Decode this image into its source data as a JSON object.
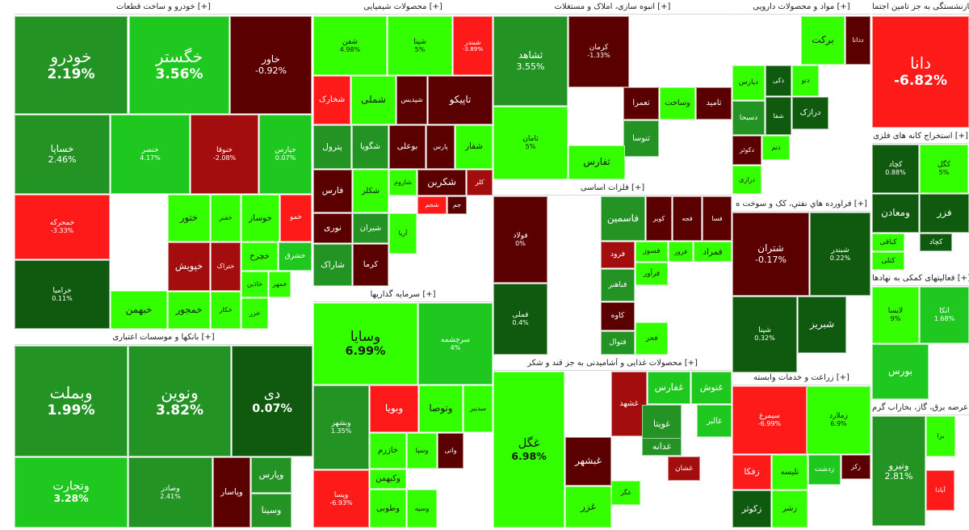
{
  "chart_data": {
    "type": "treemap",
    "colors": {
      "gain_strong": "#33ff00",
      "gain_mid": "#1fc81f",
      "gain_weak": "#239423",
      "neutral_dark": "#0f5a0f",
      "loss_dark": "#5a0000",
      "loss_mid": "#a30d0d",
      "loss_strong": "#ff1a1a",
      "text_light": "#ffffff",
      "text_dark": "#1a1a1a"
    },
    "sectors": [
      {
        "id": "auto",
        "title": "خودرو و ساخت قطعات [+]",
        "cells": [
          {
            "name": "خودرو",
            "pct": "2.19%",
            "c": "gain_weak",
            "big": true
          },
          {
            "name": "خگستر",
            "pct": "3.56%",
            "c": "gain_mid",
            "big": true
          },
          {
            "name": "خاور",
            "pct": "-0.92%",
            "c": "loss_dark"
          },
          {
            "name": "خساپا",
            "pct": "2.46%",
            "c": "gain_weak"
          },
          {
            "name": "خنصر",
            "pct": "4.17%",
            "c": "gain_mid",
            "small": true
          },
          {
            "name": "خنوقا",
            "pct": "-2.08%",
            "c": "loss_mid",
            "small": true
          },
          {
            "name": "خپارس",
            "pct": "0.07%",
            "c": "gain_mid",
            "small": true
          },
          {
            "name": "خمحرکه",
            "pct": "-3.33%",
            "c": "loss_strong",
            "small": true
          },
          {
            "name": "خرامیا",
            "pct": "0.11%",
            "c": "neutral_dark",
            "small": true
          },
          {
            "name": "ختور",
            "c": "gain_strong"
          },
          {
            "name": "خفنر",
            "c": "gain_strong"
          },
          {
            "name": "خوساز",
            "c": "gain_strong"
          },
          {
            "name": "خمو",
            "c": "loss_strong"
          },
          {
            "name": "خپویش",
            "c": "loss_mid"
          },
          {
            "name": "ختراک",
            "c": "loss_mid"
          },
          {
            "name": "خچرخ",
            "c": "gain_strong"
          },
          {
            "name": "خشرق",
            "c": "gain_mid"
          },
          {
            "name": "خاذین",
            "c": "gain_strong"
          },
          {
            "name": "خمهر",
            "c": "gain_strong"
          },
          {
            "name": "خکار",
            "c": "gain_strong"
          },
          {
            "name": "خزر",
            "c": "gain_strong"
          },
          {
            "name": "خبهمن",
            "c": "gain_strong"
          },
          {
            "name": "خمجور",
            "c": "gain_strong"
          }
        ]
      },
      {
        "id": "banks",
        "title": "بانکها و موسسات اعتباری [+]",
        "cells": [
          {
            "name": "وبملت",
            "pct": "1.99%",
            "c": "gain_weak",
            "big": true
          },
          {
            "name": "ونوین",
            "pct": "3.82%",
            "c": "gain_weak",
            "big": true
          },
          {
            "name": "دی",
            "pct": "0.07%",
            "c": "neutral_dark",
            "big": true
          },
          {
            "name": "وتجارت",
            "pct": "3.28%",
            "c": "gain_mid",
            "big": true
          },
          {
            "name": "وصادر",
            "pct": "2.41%",
            "c": "gain_weak",
            "small": true
          },
          {
            "name": "وپاسار",
            "c": "loss_dark"
          },
          {
            "name": "وپارس",
            "c": "gain_weak"
          },
          {
            "name": "وسینا",
            "c": "gain_weak"
          }
        ]
      },
      {
        "id": "chem",
        "title": "محصولات شیمیایی [+]",
        "cells": [
          {
            "name": "شفن",
            "pct": "4.98%",
            "c": "gain_strong",
            "small": true
          },
          {
            "name": "شپنا",
            "pct": "5%",
            "c": "gain_strong",
            "small": true
          },
          {
            "name": "شبندر",
            "pct": "-3.89%",
            "c": "loss_strong",
            "small": true
          },
          {
            "name": "شخارک",
            "c": "loss_strong"
          },
          {
            "name": "شملی",
            "c": "gain_strong"
          },
          {
            "name": "شپدیس",
            "c": "loss_dark"
          },
          {
            "name": "تاپیکو",
            "c": "loss_dark"
          },
          {
            "name": "پترول",
            "c": "gain_weak"
          },
          {
            "name": "شگویا",
            "c": "gain_weak"
          },
          {
            "name": "بوعلی",
            "c": "loss_dark"
          },
          {
            "name": "پارس",
            "c": "loss_dark"
          },
          {
            "name": "شفار",
            "c": "gain_strong"
          },
          {
            "name": "فارس",
            "c": "loss_dark"
          },
          {
            "name": "شکلر",
            "c": "gain_strong"
          },
          {
            "name": "شاروم",
            "c": "gain_strong"
          },
          {
            "name": "شکربن",
            "c": "loss_dark"
          },
          {
            "name": "کلر",
            "c": "loss_mid"
          },
          {
            "name": "نوری",
            "c": "loss_dark"
          },
          {
            "name": "شیران",
            "c": "gain_weak"
          },
          {
            "name": "آریا",
            "c": "gain_strong"
          },
          {
            "name": "شجم",
            "c": "loss_strong"
          },
          {
            "name": "جم",
            "c": "loss_dark"
          },
          {
            "name": "شاراک",
            "c": "gain_weak"
          },
          {
            "name": "کرما",
            "c": "loss_dark"
          }
        ]
      },
      {
        "id": "invest",
        "title": "سرمایه گذاریها [+]",
        "cells": [
          {
            "name": "وسایا",
            "pct": "6.99%",
            "c": "gain_strong",
            "big": true
          },
          {
            "name": "سرچشمه",
            "pct": "4%",
            "c": "gain_mid",
            "small": true
          },
          {
            "name": "وبشهر",
            "pct": "1.35%",
            "c": "gain_weak",
            "small": true
          },
          {
            "name": "وبویا",
            "c": "loss_strong"
          },
          {
            "name": "وتوصا",
            "c": "gain_strong"
          },
          {
            "name": "سدبیر",
            "c": "gain_strong"
          },
          {
            "name": "خازرم",
            "c": "gain_strong"
          },
          {
            "name": "وسپا",
            "c": "gain_strong"
          },
          {
            "name": "واتی",
            "c": "loss_dark"
          },
          {
            "name": "وکبهمن",
            "c": "gain_strong"
          },
          {
            "name": "وطوبی",
            "c": "gain_strong"
          },
          {
            "name": "وسپه",
            "c": "gain_strong"
          },
          {
            "name": "وپسا",
            "pct": "-6.93%",
            "c": "loss_strong",
            "small": true
          }
        ]
      },
      {
        "id": "constr",
        "title": "انبوه سازی، املاک و مستغلات [+]",
        "cells": [
          {
            "name": "ثشاهد",
            "pct": "3.55%",
            "c": "gain_weak"
          },
          {
            "name": "کرمان",
            "pct": "-1.33%",
            "c": "loss_dark",
            "small": true
          },
          {
            "name": "ثامان",
            "pct": "5%",
            "c": "gain_strong",
            "small": true
          },
          {
            "name": "ثعمرا",
            "c": "loss_dark"
          },
          {
            "name": "وساخت",
            "c": "gain_strong"
          },
          {
            "name": "ثامید",
            "c": "loss_dark"
          },
          {
            "name": "ثنوسا",
            "c": "gain_weak"
          },
          {
            "name": "ثفارس",
            "c": "gain_strong"
          }
        ]
      },
      {
        "id": "metal",
        "title": "فلزات اساسی [+]",
        "cells": [
          {
            "name": "فولاد",
            "pct": "0%",
            "c": "loss_dark",
            "small": true
          },
          {
            "name": "فملی",
            "pct": "0.4%",
            "c": "neutral_dark",
            "small": true
          },
          {
            "name": "فاسمین",
            "c": "gain_weak"
          },
          {
            "name": "کویر",
            "c": "loss_dark"
          },
          {
            "name": "فجه",
            "c": "loss_dark"
          },
          {
            "name": "فسا",
            "c": "loss_dark"
          },
          {
            "name": "فرود",
            "c": "loss_mid"
          },
          {
            "name": "فسوز",
            "c": "gain_strong"
          },
          {
            "name": "فروز",
            "c": "gain_strong"
          },
          {
            "name": "فمراد",
            "c": "gain_strong"
          },
          {
            "name": "فباهنر",
            "c": "gain_weak"
          },
          {
            "name": "فرآور",
            "c": "gain_strong"
          },
          {
            "name": "کاوه",
            "c": "loss_dark"
          },
          {
            "name": "فتوال",
            "c": "gain_weak"
          },
          {
            "name": "فجر",
            "c": "gain_strong"
          }
        ]
      },
      {
        "id": "food",
        "title": "محصولات غذایی و آشامیدنی به جز قند و شکر [+]",
        "cells": [
          {
            "name": "غگل",
            "pct": "6.98%",
            "c": "gain_strong",
            "big": true
          },
          {
            "name": "غشهد",
            "c": "loss_mid"
          },
          {
            "name": "غفارس",
            "c": "gain_mid"
          },
          {
            "name": "غنوش",
            "c": "gain_mid"
          },
          {
            "name": "غویتا",
            "c": "gain_weak"
          },
          {
            "name": "غالبر",
            "c": "gain_mid"
          },
          {
            "name": "غدانه",
            "c": "gain_weak"
          },
          {
            "name": "غشان",
            "c": "loss_mid"
          },
          {
            "name": "غبشهر",
            "c": "loss_dark"
          },
          {
            "name": "غزر",
            "c": "gain_strong"
          },
          {
            "name": "غگر",
            "c": "gain_strong"
          }
        ]
      },
      {
        "id": "pharma",
        "title": "مواد و محصولات دارویی [+]",
        "cells": [
          {
            "name": "برکت",
            "c": "gain_strong"
          },
          {
            "name": "ددانا",
            "c": "loss_dark"
          },
          {
            "name": "دپارس",
            "c": "gain_strong"
          },
          {
            "name": "دکی",
            "c": "neutral_dark"
          },
          {
            "name": "دتو",
            "c": "gain_strong"
          },
          {
            "name": "دسبحا",
            "c": "gain_weak"
          },
          {
            "name": "شفا",
            "c": "neutral_dark"
          },
          {
            "name": "درازک",
            "c": "neutral_dark"
          },
          {
            "name": "دکوثر",
            "c": "loss_dark"
          },
          {
            "name": "دتم",
            "c": "gain_strong"
          },
          {
            "name": "درازی",
            "c": "gain_strong"
          }
        ]
      },
      {
        "id": "oil",
        "title": "فراورده هاي نفتي، كک و سوخت ه [+]",
        "cells": [
          {
            "name": "شتران",
            "pct": "-0.17%",
            "c": "loss_dark"
          },
          {
            "name": "شبندر",
            "pct": "0.22%",
            "c": "neutral_dark",
            "small": true
          },
          {
            "name": "شپنا",
            "pct": "0.32%",
            "c": "neutral_dark",
            "small": true
          },
          {
            "name": "شبریز",
            "c": "neutral_dark"
          }
        ]
      },
      {
        "id": "agri",
        "title": "زراعت و خدمات وابسته [+]",
        "cells": [
          {
            "name": "سیمرغ",
            "pct": "-6.99%",
            "c": "loss_strong",
            "small": true
          },
          {
            "name": "زملارد",
            "pct": "6.9%",
            "c": "gain_strong",
            "small": true
          },
          {
            "name": "زفکا",
            "c": "loss_strong"
          },
          {
            "name": "تلیسه",
            "c": "gain_strong"
          },
          {
            "name": "زدشت",
            "c": "gain_mid"
          },
          {
            "name": "زکوثر",
            "c": "neutral_dark"
          },
          {
            "name": "زشر",
            "c": "gain_strong"
          },
          {
            "name": "زکز",
            "c": "loss_dark"
          }
        ]
      },
      {
        "id": "insur",
        "title": "بیمه و صندوق بازنشستگی به جز تامین اجتما [+]",
        "cells": [
          {
            "name": "دانا",
            "pct": "-6.82%",
            "c": "loss_strong",
            "big": true
          }
        ]
      },
      {
        "id": "mining",
        "title": "استخراج کانه های فلزی [+]",
        "cells": [
          {
            "name": "کچاد",
            "pct": "0.88%",
            "c": "neutral_dark",
            "small": true
          },
          {
            "name": "کگل",
            "pct": "5%",
            "c": "gain_strong",
            "small": true
          },
          {
            "name": "فزر",
            "c": "neutral_dark"
          },
          {
            "name": "ومعادن",
            "c": "neutral_dark"
          },
          {
            "name": "کباقی",
            "c": "gain_strong"
          },
          {
            "name": "کچاد",
            "c": "neutral_dark"
          },
          {
            "name": "کتلی",
            "c": "gain_strong"
          }
        ]
      },
      {
        "id": "support",
        "title": "فعالیتهای کمکی به نهادها [+]",
        "cells": [
          {
            "name": "لابسا",
            "pct": "9%",
            "c": "gain_strong",
            "small": true
          },
          {
            "name": "اتکا",
            "pct": "1.68%",
            "c": "gain_mid",
            "small": true
          },
          {
            "name": "بورس",
            "c": "gain_mid"
          }
        ]
      },
      {
        "id": "utility",
        "title": "عرضه برق، گاز، بخاراب گرم [+]",
        "cells": [
          {
            "name": "ونیرو",
            "pct": "2.81%",
            "c": "gain_weak"
          },
          {
            "name": "آبادا",
            "c": "loss_strong"
          },
          {
            "name": "بزا",
            "c": "gain_strong"
          }
        ]
      }
    ]
  }
}
